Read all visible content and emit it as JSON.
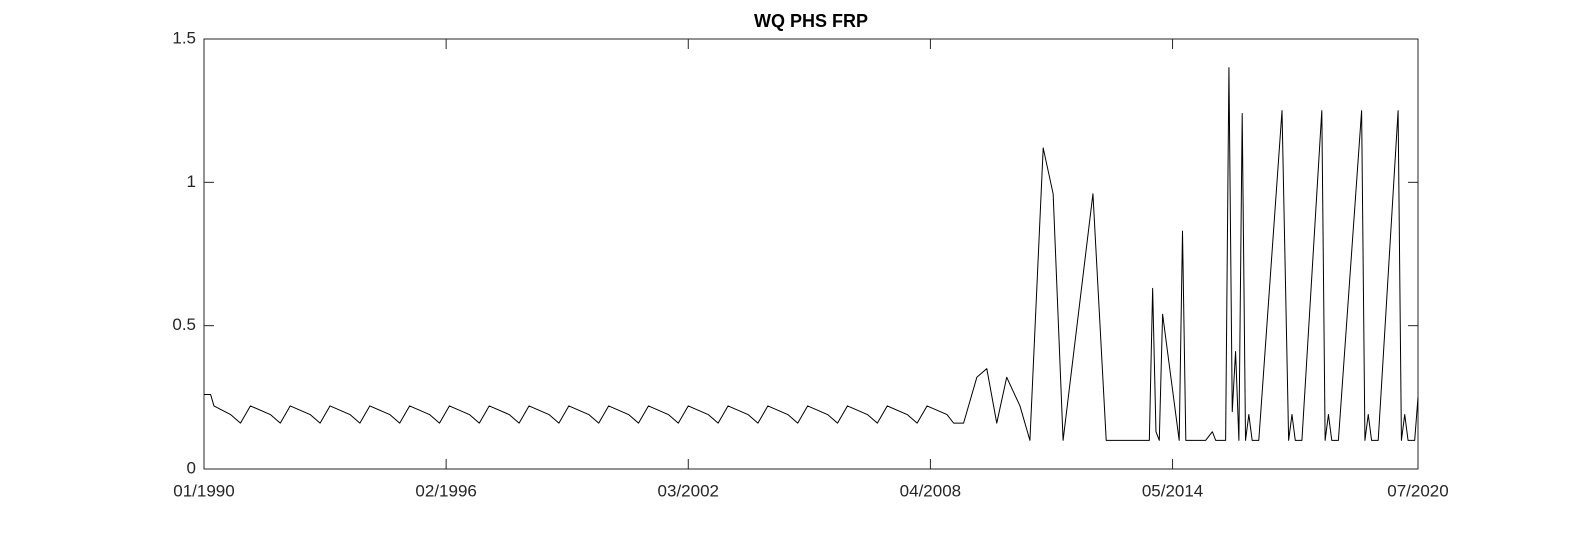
{
  "chart_data": {
    "type": "line",
    "title": "WQ PHS FRP",
    "x": [
      "1990-01",
      "1990-03",
      "1990-04",
      "1990-09",
      "1990-12",
      "1991-03",
      "1991-09",
      "1991-12",
      "1992-03",
      "1992-09",
      "1992-12",
      "1993-03",
      "1993-09",
      "1993-12",
      "1994-03",
      "1994-09",
      "1994-12",
      "1995-03",
      "1995-09",
      "1995-12",
      "1996-03",
      "1996-09",
      "1996-12",
      "1997-03",
      "1997-09",
      "1997-12",
      "1998-03",
      "1998-09",
      "1998-12",
      "1999-03",
      "1999-09",
      "1999-12",
      "2000-03",
      "2000-09",
      "2000-12",
      "2001-03",
      "2001-09",
      "2001-12",
      "2002-03",
      "2002-09",
      "2002-12",
      "2003-03",
      "2003-09",
      "2003-12",
      "2004-03",
      "2004-09",
      "2004-12",
      "2005-03",
      "2005-09",
      "2005-12",
      "2006-03",
      "2006-09",
      "2006-12",
      "2007-03",
      "2007-09",
      "2007-12",
      "2008-03",
      "2008-09",
      "2008-11",
      "2009-02",
      "2009-06",
      "2009-09",
      "2009-12",
      "2010-03",
      "2010-07",
      "2010-10",
      "2011-02",
      "2011-05",
      "2011-08",
      "2012-05",
      "2012-09",
      "2013-10",
      "2013-11",
      "2013-12",
      "2014-01",
      "2014-02",
      "2014-07",
      "2014-08",
      "2014-09",
      "2015-03",
      "2015-05",
      "2015-06",
      "2015-09",
      "2015-10",
      "2015-11",
      "2015-12",
      "2016-01",
      "2016-02",
      "2016-03",
      "2016-04",
      "2016-05",
      "2016-07",
      "2017-02",
      "2017-04",
      "2017-05",
      "2017-06",
      "2017-08",
      "2018-02",
      "2018-03",
      "2018-04",
      "2018-05",
      "2018-07",
      "2019-02",
      "2019-03",
      "2019-04",
      "2019-05",
      "2019-07",
      "2020-01",
      "2020-02",
      "2020-03",
      "2020-04",
      "2020-06",
      "2020-07"
    ],
    "series": [
      {
        "color": "#000000",
        "values": [
          0.26,
          0.26,
          0.22,
          0.19,
          0.16,
          0.22,
          0.19,
          0.16,
          0.22,
          0.19,
          0.16,
          0.22,
          0.19,
          0.16,
          0.22,
          0.19,
          0.16,
          0.22,
          0.19,
          0.16,
          0.22,
          0.19,
          0.16,
          0.22,
          0.19,
          0.16,
          0.22,
          0.19,
          0.16,
          0.22,
          0.19,
          0.16,
          0.22,
          0.19,
          0.16,
          0.22,
          0.19,
          0.16,
          0.22,
          0.19,
          0.16,
          0.22,
          0.19,
          0.16,
          0.22,
          0.19,
          0.16,
          0.22,
          0.19,
          0.16,
          0.22,
          0.19,
          0.16,
          0.22,
          0.19,
          0.16,
          0.22,
          0.19,
          0.16,
          0.16,
          0.32,
          0.35,
          0.16,
          0.32,
          0.22,
          0.1,
          1.12,
          0.96,
          0.1,
          0.96,
          0.1,
          0.1,
          0.63,
          0.13,
          0.1,
          0.54,
          0.1,
          0.83,
          0.1,
          0.1,
          0.13,
          0.1,
          0.1,
          1.4,
          0.2,
          0.41,
          0.1,
          1.24,
          0.1,
          0.19,
          0.1,
          0.1,
          1.25,
          0.1,
          0.19,
          0.1,
          0.1,
          1.25,
          0.1,
          0.19,
          0.1,
          0.1,
          1.25,
          0.1,
          0.19,
          0.1,
          0.1,
          1.25,
          0.1,
          0.19,
          0.1,
          0.1,
          0.25
        ]
      }
    ],
    "xlim": [
      "1990-01",
      "2020-07"
    ],
    "xticks": [
      {
        "value": "1990-01",
        "label": "01/1990"
      },
      {
        "value": "1996-02",
        "label": "02/1996"
      },
      {
        "value": "2002-03",
        "label": "03/2002"
      },
      {
        "value": "2008-04",
        "label": "04/2008"
      },
      {
        "value": "2014-05",
        "label": "05/2014"
      },
      {
        "value": "2020-07",
        "label": "07/2020"
      }
    ],
    "ylim": [
      0,
      1.5
    ],
    "yticks": [
      0,
      0.5,
      1,
      1.5
    ]
  }
}
